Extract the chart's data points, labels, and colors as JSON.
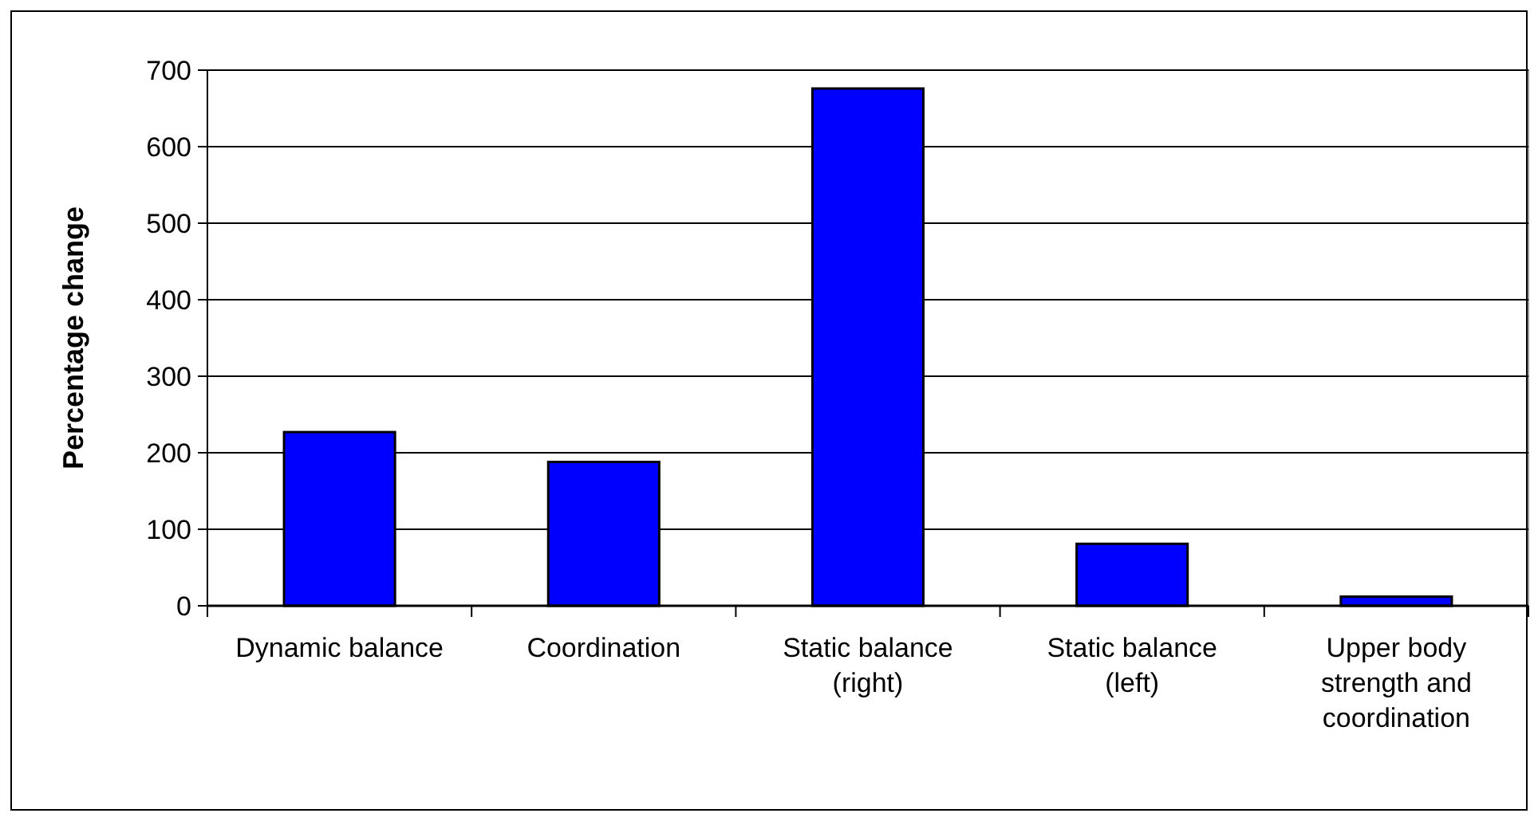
{
  "chart_data": {
    "type": "bar",
    "ylabel": "Percentage change",
    "categories": [
      "Dynamic balance",
      "Coordination",
      "Static balance (right)",
      "Static balance (left)",
      "Upper body strength and coordination"
    ],
    "values": [
      227,
      188,
      676,
      81,
      12
    ],
    "color": "#0000ff",
    "ylim": [
      0,
      700
    ],
    "yticks": [
      0,
      100,
      200,
      300,
      400,
      500,
      600,
      700
    ],
    "grid": "y"
  }
}
